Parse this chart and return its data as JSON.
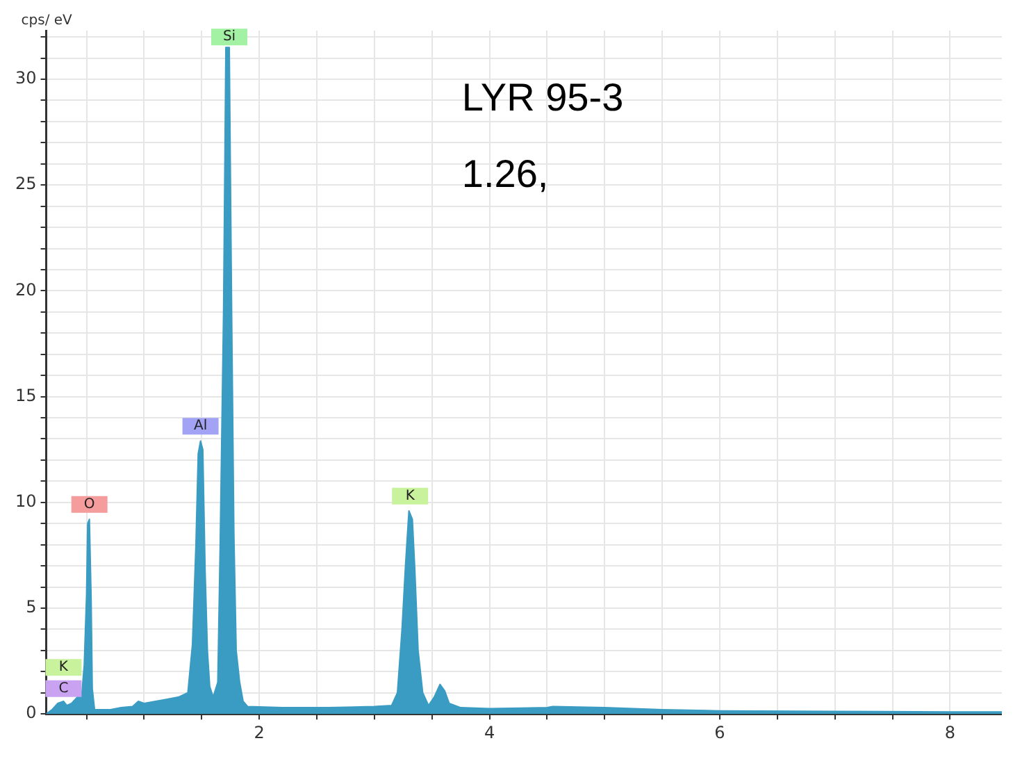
{
  "chart_data": {
    "type": "area",
    "ylabel": "cps/ eV",
    "x": [
      0.15,
      0.2,
      0.25,
      0.3,
      0.33,
      0.37,
      0.42,
      0.46,
      0.48,
      0.5,
      0.51,
      0.525,
      0.54,
      0.55,
      0.57,
      0.7,
      0.8,
      0.9,
      0.95,
      1.0,
      1.1,
      1.2,
      1.3,
      1.38,
      1.42,
      1.45,
      1.47,
      1.49,
      1.51,
      1.53,
      1.55,
      1.57,
      1.6,
      1.64,
      1.66,
      1.69,
      1.71,
      1.74,
      1.76,
      1.78,
      1.8,
      1.83,
      1.86,
      1.9,
      2.2,
      2.6,
      3.0,
      3.15,
      3.2,
      3.24,
      3.27,
      3.3,
      3.33,
      3.35,
      3.38,
      3.42,
      3.47,
      3.52,
      3.57,
      3.61,
      3.65,
      3.75,
      4.0,
      4.5,
      4.55,
      5.0,
      5.5,
      6.0,
      7.0,
      8.0,
      8.45
    ],
    "series": [
      {
        "color": "#3a9cc2",
        "values": [
          0.0,
          0.2,
          0.5,
          0.6,
          0.4,
          0.5,
          0.8,
          1.0,
          2.3,
          5.6,
          9.0,
          9.2,
          5.5,
          1.2,
          0.2,
          0.2,
          0.3,
          0.35,
          0.6,
          0.5,
          0.6,
          0.7,
          0.8,
          1.0,
          3.3,
          8.0,
          12.3,
          12.9,
          12.5,
          6.8,
          3.0,
          1.3,
          0.8,
          1.5,
          7.8,
          19.0,
          31.5,
          31.5,
          19.3,
          8.5,
          3.0,
          1.5,
          0.6,
          0.35,
          0.3,
          0.3,
          0.35,
          0.4,
          1.0,
          4.0,
          7.0,
          9.6,
          9.2,
          7.0,
          3.0,
          1.0,
          0.4,
          0.8,
          1.4,
          1.1,
          0.5,
          0.3,
          0.25,
          0.3,
          0.35,
          0.3,
          0.2,
          0.15,
          0.12,
          0.1,
          0.1
        ]
      }
    ],
    "xlim": [
      0.15,
      8.45
    ],
    "ylim": [
      0,
      32.3
    ],
    "xticks": [
      {
        "value": 0.5,
        "label": null
      },
      {
        "value": 1,
        "label": null
      },
      {
        "value": 1.5,
        "label": null
      },
      2,
      {
        "value": 2.5,
        "label": null
      },
      {
        "value": 3,
        "label": null
      },
      {
        "value": 3.5,
        "label": null
      },
      4,
      {
        "value": 4.5,
        "label": null
      },
      {
        "value": 5,
        "label": null
      },
      {
        "value": 5.5,
        "label": null
      },
      6,
      {
        "value": 6.5,
        "label": null
      },
      {
        "value": 7,
        "label": null
      },
      {
        "value": 7.5,
        "label": null
      },
      8
    ],
    "yticks": [
      0,
      {
        "value": 1,
        "label": null
      },
      {
        "value": 2,
        "label": null
      },
      {
        "value": 3,
        "label": null
      },
      {
        "value": 4,
        "label": null
      },
      5,
      {
        "value": 6,
        "label": null
      },
      {
        "value": 7,
        "label": null
      },
      {
        "value": 8,
        "label": null
      },
      {
        "value": 9,
        "label": null
      },
      10,
      {
        "value": 11,
        "label": null
      },
      {
        "value": 12,
        "label": null
      },
      {
        "value": 13,
        "label": null
      },
      {
        "value": 14,
        "label": null
      },
      15,
      {
        "value": 16,
        "label": null
      },
      {
        "value": 17,
        "label": null
      },
      {
        "value": 18,
        "label": null
      },
      {
        "value": 19,
        "label": null
      },
      20,
      {
        "value": 21,
        "label": null
      },
      {
        "value": 22,
        "label": null
      },
      {
        "value": 23,
        "label": null
      },
      {
        "value": 24,
        "label": null
      },
      25,
      {
        "value": 26,
        "label": null
      },
      {
        "value": 27,
        "label": null
      },
      {
        "value": 28,
        "label": null
      },
      {
        "value": 29,
        "label": null
      },
      30,
      {
        "value": 31,
        "label": null
      },
      {
        "value": 32,
        "label": null
      }
    ],
    "grid": true,
    "legend": false,
    "annotations": [
      {
        "text": "C",
        "x": 0.3,
        "y": 1.2
      },
      {
        "text": "K",
        "x": 0.3,
        "y": 2.2
      },
      {
        "text": "O",
        "x": 0.525,
        "y": 9.9
      },
      {
        "text": "Al",
        "x": 1.49,
        "y": 13.6
      },
      {
        "text": "Si",
        "x": 1.74,
        "y": 32.0
      },
      {
        "text": "K",
        "x": 3.31,
        "y": 10.3
      },
      "LYR 95-3",
      "1.26,"
    ]
  }
}
